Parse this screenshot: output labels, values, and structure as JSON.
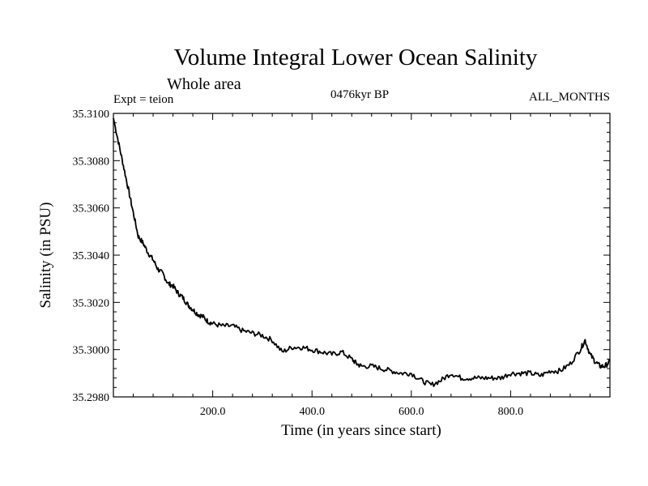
{
  "chart_data": {
    "type": "line",
    "title": "Volume Integral Lower Ocean Salinity",
    "subtitle": "Whole area",
    "experiment_label": "Expt = teion",
    "period_label": "0476kyr BP",
    "months_label": "ALL_MONTHS",
    "xlabel": "Time (in years since start)",
    "ylabel": "Salinity (in PSU)",
    "xlim": [
      0,
      1000
    ],
    "ylim": [
      35.298,
      35.31
    ],
    "x_ticks": [
      200,
      400,
      600,
      800
    ],
    "x_tick_labels": [
      "200.0",
      "400.0",
      "600.0",
      "800.0"
    ],
    "y_ticks": [
      35.298,
      35.3,
      35.302,
      35.304,
      35.306,
      35.308,
      35.31
    ],
    "y_tick_labels": [
      "35.2980",
      "35.3000",
      "35.3020",
      "35.3040",
      "35.3060",
      "35.3080",
      "35.3100"
    ],
    "grid": false,
    "series": [
      {
        "name": "salinity",
        "color": "#000000",
        "x": [
          0,
          10,
          20,
          30,
          40,
          50,
          60,
          70,
          80,
          90,
          100,
          110,
          120,
          130,
          140,
          150,
          160,
          170,
          180,
          190,
          200,
          220,
          240,
          260,
          280,
          300,
          320,
          340,
          360,
          380,
          400,
          420,
          440,
          460,
          480,
          490,
          500,
          520,
          540,
          560,
          580,
          600,
          620,
          640,
          660,
          680,
          700,
          720,
          740,
          760,
          780,
          800,
          820,
          840,
          860,
          880,
          900,
          920,
          940,
          950,
          960,
          970,
          980,
          990,
          1000
        ],
        "values": [
          35.3098,
          35.3088,
          35.3078,
          35.3068,
          35.3058,
          35.3048,
          35.3045,
          35.3041,
          35.3038,
          35.3034,
          35.3032,
          35.3028,
          35.3027,
          35.3024,
          35.3022,
          35.3019,
          35.3017,
          35.3015,
          35.3014,
          35.3012,
          35.3011,
          35.301,
          35.301,
          35.3008,
          35.3007,
          35.3006,
          35.3004,
          35.2999,
          35.3001,
          35.3001,
          35.3,
          35.2999,
          35.2998,
          35.2999,
          35.2996,
          35.2994,
          35.2993,
          35.2993,
          35.2992,
          35.2991,
          35.299,
          35.299,
          35.2987,
          35.2985,
          35.2987,
          35.299,
          35.2988,
          35.2988,
          35.2988,
          35.2988,
          35.2988,
          35.299,
          35.299,
          35.299,
          35.2989,
          35.2991,
          35.2991,
          35.2994,
          35.3,
          35.3004,
          35.2998,
          35.2995,
          35.2993,
          35.2993,
          35.2995
        ]
      }
    ]
  }
}
